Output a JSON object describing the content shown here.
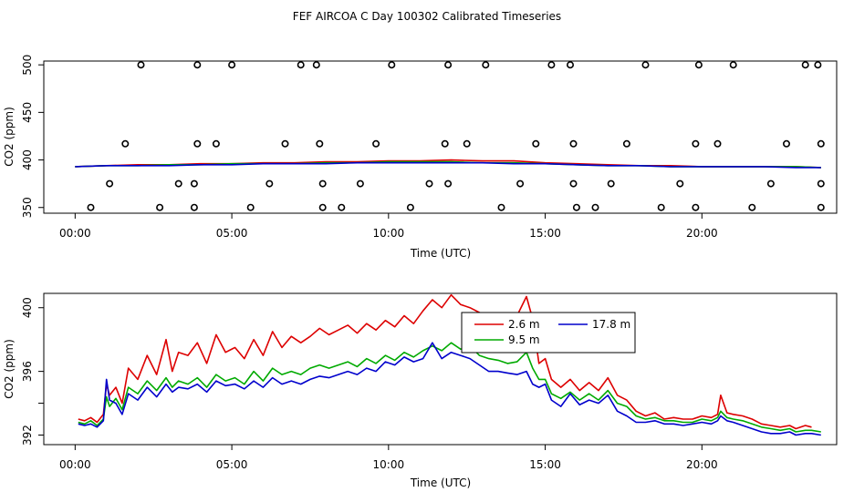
{
  "title": "FEF AIRCOA C  Day 100302  Calibrated Timeseries",
  "chart_data": [
    {
      "type": "line+scatter",
      "name": "calibration-panel",
      "xlabel": "Time (UTC)",
      "ylabel": "CO2 (ppm)",
      "xlim": [
        -1,
        24.3
      ],
      "ylim": [
        344,
        504
      ],
      "xticks": [
        0,
        5,
        10,
        15,
        20
      ],
      "xtick_labels": [
        "00:00",
        "05:00",
        "10:00",
        "15:00",
        "20:00"
      ],
      "yticks": [
        350,
        400,
        450,
        500
      ],
      "ytick_labels": [
        "350",
        "400",
        "450",
        "500"
      ],
      "series": [
        {
          "name": "2.6 m",
          "color": "#dd0000",
          "x": [
            0,
            1,
            2,
            3,
            4,
            5,
            6,
            7,
            8,
            9,
            10,
            11,
            12,
            13,
            14,
            15,
            16,
            17,
            18,
            19,
            20,
            21,
            22,
            23,
            23.8
          ],
          "y": [
            393,
            394,
            395,
            395,
            396,
            396,
            397,
            397,
            398,
            398,
            399,
            399,
            400,
            399,
            399,
            397,
            396,
            395,
            394,
            394,
            393,
            393,
            393,
            393,
            392
          ]
        },
        {
          "name": "9.5 m",
          "color": "#00aa00",
          "x": [
            0,
            1,
            2,
            3,
            4,
            5,
            6,
            7,
            8,
            9,
            10,
            11,
            12,
            13,
            14,
            15,
            16,
            17,
            18,
            19,
            20,
            21,
            22,
            23,
            23.8
          ],
          "y": [
            393,
            394,
            394,
            395,
            395,
            396,
            396,
            396,
            397,
            397,
            398,
            398,
            398,
            397,
            397,
            396,
            395,
            394,
            394,
            393,
            393,
            393,
            393,
            393,
            392
          ]
        },
        {
          "name": "17.8 m",
          "color": "#0000cc",
          "x": [
            0,
            1,
            2,
            3,
            4,
            5,
            6,
            7,
            8,
            9,
            10,
            11,
            12,
            13,
            14,
            15,
            16,
            17,
            18,
            19,
            20,
            21,
            22,
            23,
            23.8
          ],
          "y": [
            393,
            394,
            394,
            394,
            395,
            395,
            396,
            396,
            396,
            397,
            397,
            397,
            397,
            397,
            396,
            396,
            395,
            394,
            394,
            393,
            393,
            393,
            393,
            392,
            392
          ]
        }
      ],
      "calibration_points": {
        "x": [
          0.5,
          1.1,
          1.6,
          2.1,
          2.7,
          3.3,
          3.8,
          3.8,
          3.9,
          3.9,
          4.5,
          5.0,
          5.6,
          6.2,
          6.7,
          7.2,
          7.7,
          7.8,
          7.9,
          7.9,
          8.5,
          9.1,
          9.6,
          10.1,
          10.7,
          11.3,
          11.8,
          11.9,
          11.9,
          12.5,
          13.1,
          13.6,
          14.2,
          14.7,
          15.2,
          15.8,
          15.9,
          15.9,
          16.0,
          16.6,
          17.1,
          17.6,
          18.2,
          18.7,
          19.3,
          19.8,
          19.8,
          19.9,
          20.5,
          21.0,
          21.6,
          22.2,
          22.7,
          23.3,
          23.7,
          23.8,
          23.8,
          23.8
        ],
        "y": [
          350,
          375,
          417,
          500,
          350,
          375,
          350,
          375,
          417,
          500,
          417,
          500,
          350,
          375,
          417,
          500,
          500,
          417,
          375,
          350,
          350,
          375,
          417,
          500,
          350,
          375,
          417,
          375,
          500,
          417,
          500,
          350,
          375,
          417,
          500,
          500,
          417,
          375,
          350,
          350,
          375,
          417,
          500,
          350,
          375,
          350,
          417,
          500,
          417,
          500,
          350,
          375,
          417,
          500,
          500,
          417,
          375,
          350
        ]
      }
    },
    {
      "type": "line",
      "name": "ambient-panel",
      "xlabel": "Time (UTC)",
      "ylabel": "CO2 (ppm)",
      "xlim": [
        -1,
        24.3
      ],
      "ylim": [
        391.4,
        400.9
      ],
      "xticks": [
        0,
        5,
        10,
        15,
        20
      ],
      "xtick_labels": [
        "00:00",
        "05:00",
        "10:00",
        "15:00",
        "20:00"
      ],
      "yticks": [
        392,
        396,
        400
      ],
      "ytick_labels": [
        "392",
        "396",
        "400"
      ],
      "extra_ytick": 394,
      "legend": {
        "position": "top-center",
        "entries": [
          "2.6 m",
          "9.5 m",
          "17.8 m"
        ]
      },
      "series": [
        {
          "name": "2.6 m",
          "color": "#dd0000",
          "x": [
            0.1,
            0.3,
            0.5,
            0.7,
            0.9,
            1.0,
            1.1,
            1.3,
            1.5,
            1.7,
            2.0,
            2.3,
            2.6,
            2.9,
            3.1,
            3.3,
            3.6,
            3.9,
            4.2,
            4.5,
            4.8,
            5.1,
            5.4,
            5.7,
            6.0,
            6.3,
            6.6,
            6.9,
            7.2,
            7.5,
            7.8,
            8.1,
            8.4,
            8.7,
            9.0,
            9.3,
            9.6,
            9.9,
            10.2,
            10.5,
            10.8,
            11.1,
            11.4,
            11.7,
            12.0,
            12.3,
            12.6,
            12.9,
            13.2,
            13.5,
            13.8,
            14.1,
            14.4,
            14.6,
            14.8,
            15.0,
            15.2,
            15.5,
            15.8,
            16.1,
            16.4,
            16.7,
            17.0,
            17.3,
            17.6,
            17.9,
            18.2,
            18.5,
            18.8,
            19.1,
            19.4,
            19.7,
            20.0,
            20.3,
            20.5,
            20.6,
            20.8,
            21.0,
            21.3,
            21.6,
            21.9,
            22.2,
            22.5,
            22.8,
            23.0,
            23.3,
            23.5
          ],
          "y": [
            393.0,
            392.9,
            393.1,
            392.8,
            393.3,
            395.2,
            394.5,
            395.0,
            394.0,
            396.2,
            395.5,
            397.0,
            395.8,
            398.0,
            396.0,
            397.2,
            397.0,
            397.8,
            396.5,
            398.3,
            397.2,
            397.5,
            396.8,
            398.0,
            397.0,
            398.5,
            397.5,
            398.2,
            397.8,
            398.2,
            398.7,
            398.3,
            398.6,
            398.9,
            398.4,
            399.0,
            398.6,
            399.2,
            398.8,
            399.5,
            399.0,
            399.8,
            400.5,
            400.0,
            400.8,
            400.2,
            400.0,
            399.7,
            399.4,
            399.2,
            399.0,
            399.5,
            400.7,
            399.3,
            396.5,
            396.8,
            395.5,
            395.0,
            395.5,
            394.8,
            395.3,
            394.8,
            395.6,
            394.5,
            394.2,
            393.5,
            393.2,
            393.4,
            393.0,
            393.1,
            393.0,
            393.0,
            393.2,
            393.1,
            393.3,
            394.5,
            393.4,
            393.3,
            393.2,
            393.0,
            392.7,
            392.6,
            392.5,
            392.6,
            392.4,
            392.6,
            392.5
          ]
        },
        {
          "name": "9.5 m",
          "color": "#00aa00",
          "x": [
            0.1,
            0.3,
            0.5,
            0.7,
            0.9,
            1.0,
            1.1,
            1.3,
            1.5,
            1.7,
            2.0,
            2.3,
            2.6,
            2.9,
            3.1,
            3.3,
            3.6,
            3.9,
            4.2,
            4.5,
            4.8,
            5.1,
            5.4,
            5.7,
            6.0,
            6.3,
            6.6,
            6.9,
            7.2,
            7.5,
            7.8,
            8.1,
            8.4,
            8.7,
            9.0,
            9.3,
            9.6,
            9.9,
            10.2,
            10.5,
            10.8,
            11.1,
            11.4,
            11.7,
            12.0,
            12.3,
            12.6,
            12.9,
            13.2,
            13.5,
            13.8,
            14.1,
            14.4,
            14.6,
            14.8,
            15.0,
            15.2,
            15.5,
            15.8,
            16.1,
            16.4,
            16.7,
            17.0,
            17.3,
            17.6,
            17.9,
            18.2,
            18.5,
            18.8,
            19.1,
            19.4,
            19.7,
            20.0,
            20.3,
            20.5,
            20.6,
            20.8,
            21.0,
            21.3,
            21.6,
            21.9,
            22.2,
            22.5,
            22.8,
            23.0,
            23.3,
            23.5,
            23.8
          ],
          "y": [
            392.8,
            392.7,
            392.9,
            392.6,
            393.0,
            394.4,
            393.8,
            394.3,
            393.6,
            395.0,
            394.6,
            395.4,
            394.8,
            395.6,
            395.0,
            395.4,
            395.2,
            395.6,
            395.0,
            395.8,
            395.4,
            395.6,
            395.2,
            396.0,
            395.4,
            396.2,
            395.8,
            396.0,
            395.8,
            396.2,
            396.4,
            396.2,
            396.4,
            396.6,
            396.3,
            396.8,
            396.5,
            397.0,
            396.7,
            397.2,
            396.9,
            397.3,
            397.6,
            397.3,
            397.8,
            397.4,
            397.6,
            397.0,
            396.8,
            396.7,
            396.5,
            396.6,
            397.2,
            396.2,
            395.5,
            395.5,
            394.6,
            394.3,
            394.7,
            394.2,
            394.6,
            394.2,
            394.8,
            394.0,
            393.8,
            393.2,
            393.0,
            393.1,
            392.9,
            392.9,
            392.8,
            392.8,
            393.0,
            392.9,
            393.1,
            393.5,
            393.1,
            393.0,
            392.9,
            392.7,
            392.5,
            392.4,
            392.3,
            392.4,
            392.2,
            392.3,
            392.3,
            392.2
          ]
        },
        {
          "name": "17.8 m",
          "color": "#0000cc",
          "x": [
            0.1,
            0.3,
            0.5,
            0.7,
            0.9,
            1.0,
            1.1,
            1.3,
            1.5,
            1.7,
            2.0,
            2.3,
            2.6,
            2.9,
            3.1,
            3.3,
            3.6,
            3.9,
            4.2,
            4.5,
            4.8,
            5.1,
            5.4,
            5.7,
            6.0,
            6.3,
            6.6,
            6.9,
            7.2,
            7.5,
            7.8,
            8.1,
            8.4,
            8.7,
            9.0,
            9.3,
            9.6,
            9.9,
            10.2,
            10.5,
            10.8,
            11.1,
            11.4,
            11.7,
            12.0,
            12.3,
            12.6,
            12.9,
            13.2,
            13.5,
            13.8,
            14.1,
            14.4,
            14.6,
            14.8,
            15.0,
            15.2,
            15.5,
            15.8,
            16.1,
            16.4,
            16.7,
            17.0,
            17.3,
            17.6,
            17.9,
            18.2,
            18.5,
            18.8,
            19.1,
            19.4,
            19.7,
            20.0,
            20.3,
            20.5,
            20.6,
            20.8,
            21.0,
            21.3,
            21.6,
            21.9,
            22.2,
            22.5,
            22.8,
            23.0,
            23.3,
            23.5,
            23.8
          ],
          "y": [
            392.7,
            392.6,
            392.7,
            392.5,
            392.9,
            395.5,
            394.2,
            394.0,
            393.3,
            394.6,
            394.2,
            395.0,
            394.4,
            395.2,
            394.7,
            395.0,
            394.9,
            395.2,
            394.7,
            395.4,
            395.1,
            395.2,
            394.9,
            395.4,
            395.0,
            395.6,
            395.2,
            395.4,
            395.2,
            395.5,
            395.7,
            395.6,
            395.8,
            396.0,
            395.8,
            396.2,
            396.0,
            396.6,
            396.4,
            396.9,
            396.6,
            396.8,
            397.8,
            396.8,
            397.2,
            397.0,
            396.8,
            396.4,
            396.0,
            396.0,
            395.9,
            395.8,
            396.0,
            395.2,
            395.0,
            395.2,
            394.2,
            393.8,
            394.6,
            393.9,
            394.2,
            394.0,
            394.5,
            393.5,
            393.2,
            392.8,
            392.8,
            392.9,
            392.7,
            392.7,
            392.6,
            392.7,
            392.8,
            392.7,
            392.9,
            393.2,
            392.9,
            392.8,
            392.6,
            392.4,
            392.2,
            392.1,
            392.1,
            392.2,
            392.0,
            392.1,
            392.1,
            392.0
          ]
        }
      ]
    }
  ]
}
